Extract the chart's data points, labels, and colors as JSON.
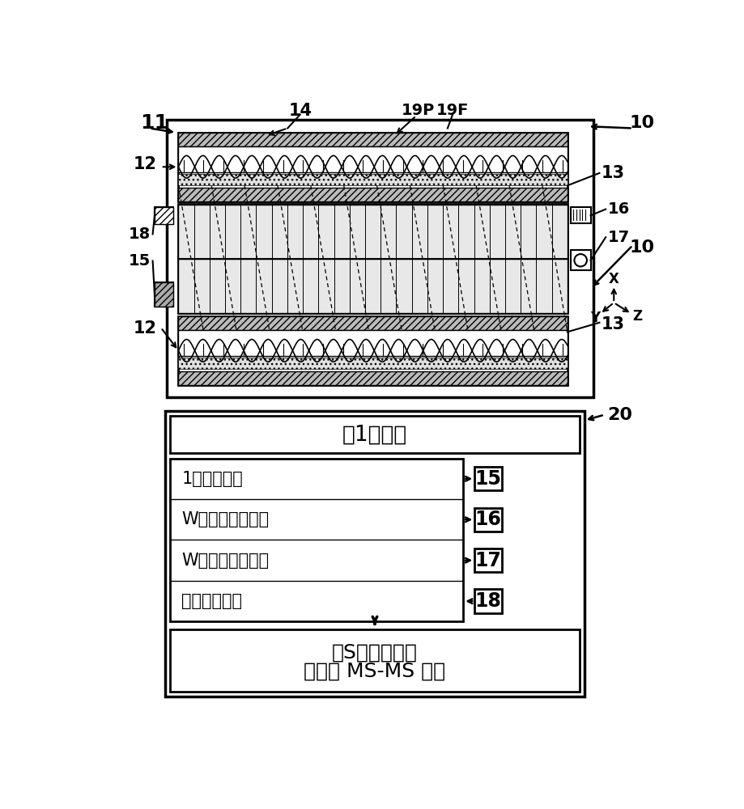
{
  "label_11": "11",
  "label_10_top": "10",
  "label_10_mid": "10",
  "label_14": "14",
  "label_19P": "19P",
  "label_19F": "19F",
  "label_12_top": "12",
  "label_12_bot": "12",
  "label_13_top": "13",
  "label_13_bot": "13",
  "label_15": "15",
  "label_16": "16",
  "label_17": "17",
  "label_18": "18",
  "label_20": "20",
  "axis_x": "X",
  "axis_y": "Y",
  "axis_z": "Z",
  "box_per_segment": "每1个分段",
  "row1_text": "1个开始脉冲",
  "row2_text": "W个时间编码脉冲",
  "row3_text": "W个延迟编码脉冲",
  "row4_text": "数据记录信号",
  "bottom_line1": "在S个分段之后",
  "bottom_line2": "全质量 MS-MS 解码"
}
